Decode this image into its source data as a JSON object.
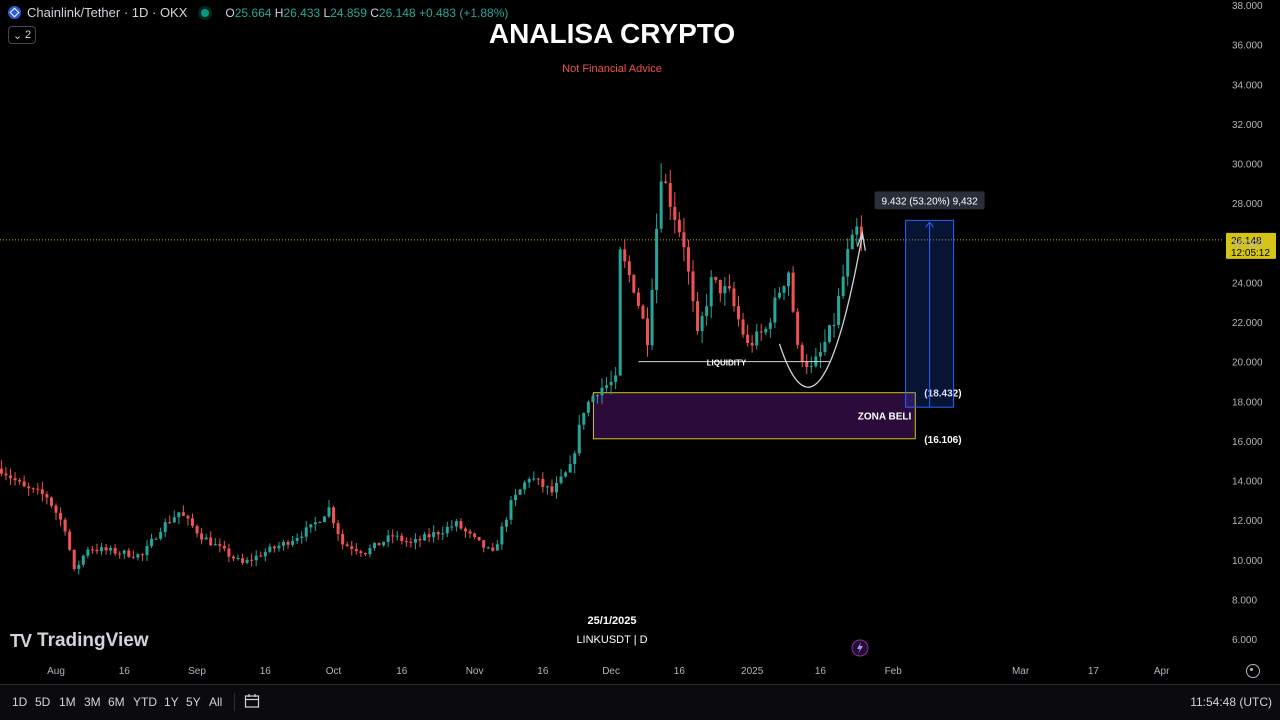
{
  "header": {
    "symbol": "Chainlink/Tether · 1D · OKX",
    "open_label": "O",
    "open": "25.664",
    "high_label": "H",
    "high": "26.433",
    "low_label": "L",
    "low": "24.859",
    "close_label": "C",
    "close": "26.148",
    "change": "+0.483 (+1.88%)",
    "collapse_count": "2"
  },
  "overlay": {
    "title": "ANALISA CRYPTO",
    "subtitle": "Not Financial Advice",
    "liquidity": "LIQUIDITY",
    "zone_label": "ZONA BELI",
    "zone_top": "(18.432)",
    "zone_bottom": "(16.106)",
    "measure": "9.432 (53.20%) 9,432",
    "date_note": "25/1/2025",
    "ticker_note": "LINKUSDT | D"
  },
  "price_tag": {
    "price": "26.148",
    "countdown": "12:05:12"
  },
  "brand": {
    "name": "TradingView"
  },
  "toolbar": {
    "timeframes": [
      "1D",
      "5D",
      "1M",
      "3M",
      "6M",
      "YTD",
      "1Y",
      "5Y",
      "All"
    ],
    "clock": "11:54:48 (UTC)"
  },
  "colors": {
    "up": "#26a69a",
    "down": "#ef5350",
    "zone": "#d4c415",
    "measure": "#2962ff",
    "title": "#ffffff",
    "subtitle": "#ef5350"
  },
  "chart_data": {
    "type": "candlestick",
    "symbol": "LINKUSDT",
    "interval": "1D",
    "y_ticks": [
      "6.000",
      "8.000",
      "10.000",
      "12.000",
      "14.000",
      "16.000",
      "18.000",
      "20.000",
      "22.000",
      "24.000",
      "26.000",
      "28.000",
      "30.000",
      "32.000",
      "34.000",
      "36.000",
      "38.000"
    ],
    "ylim": [
      5,
      38.5
    ],
    "x_ticks": [
      {
        "label": "Aug",
        "date": "2024-08-01"
      },
      {
        "label": "16",
        "date": "2024-08-16"
      },
      {
        "label": "Sep",
        "date": "2024-09-01"
      },
      {
        "label": "16",
        "date": "2024-09-16"
      },
      {
        "label": "Oct",
        "date": "2024-10-01"
      },
      {
        "label": "16",
        "date": "2024-10-16"
      },
      {
        "label": "Nov",
        "date": "2024-11-01"
      },
      {
        "label": "16",
        "date": "2024-11-16"
      },
      {
        "label": "Dec",
        "date": "2024-12-01"
      },
      {
        "label": "16",
        "date": "2024-12-16"
      },
      {
        "label": "2025",
        "date": "2025-01-01"
      },
      {
        "label": "16",
        "date": "2025-01-16"
      },
      {
        "label": "Feb",
        "date": "2025-02-01"
      },
      {
        "label": "Mar",
        "date": "2025-03-01"
      },
      {
        "label": "17",
        "date": "2025-03-17"
      },
      {
        "label": "Apr",
        "date": "2025-04-01"
      }
    ],
    "close_path": [
      [
        "2024-07-20",
        14.6
      ],
      [
        "2024-07-25",
        13.6
      ],
      [
        "2024-07-30",
        13.2
      ],
      [
        "2024-08-03",
        11.6
      ],
      [
        "2024-08-05",
        9.4
      ],
      [
        "2024-08-08",
        10.6
      ],
      [
        "2024-08-14",
        10.4
      ],
      [
        "2024-08-20",
        10.2
      ],
      [
        "2024-08-24",
        11.6
      ],
      [
        "2024-08-28",
        12.4
      ],
      [
        "2024-09-02",
        11.2
      ],
      [
        "2024-09-07",
        10.4
      ],
      [
        "2024-09-11",
        9.8
      ],
      [
        "2024-09-16",
        10.4
      ],
      [
        "2024-09-20",
        10.8
      ],
      [
        "2024-09-26",
        11.6
      ],
      [
        "2024-09-30",
        12.6
      ],
      [
        "2024-10-03",
        10.8
      ],
      [
        "2024-10-08",
        10.4
      ],
      [
        "2024-10-14",
        11.2
      ],
      [
        "2024-10-18",
        10.8
      ],
      [
        "2024-10-24",
        11.4
      ],
      [
        "2024-10-28",
        11.8
      ],
      [
        "2024-11-01",
        11.0
      ],
      [
        "2024-11-05",
        10.3
      ],
      [
        "2024-11-09",
        12.8
      ],
      [
        "2024-11-13",
        14.2
      ],
      [
        "2024-11-18",
        13.4
      ],
      [
        "2024-11-22",
        14.6
      ],
      [
        "2024-11-25",
        17.6
      ],
      [
        "2024-11-28",
        18.6
      ],
      [
        "2024-12-02",
        19.0
      ],
      [
        "2024-12-03",
        25.4
      ],
      [
        "2024-12-06",
        23.8
      ],
      [
        "2024-12-09",
        21.2
      ],
      [
        "2024-12-12",
        29.6
      ],
      [
        "2024-12-15",
        27.4
      ],
      [
        "2024-12-17",
        26.0
      ],
      [
        "2024-12-20",
        21.2
      ],
      [
        "2024-12-23",
        24.0
      ],
      [
        "2024-12-27",
        23.4
      ],
      [
        "2024-12-31",
        20.8
      ],
      [
        "2025-01-04",
        21.6
      ],
      [
        "2025-01-07",
        23.6
      ],
      [
        "2025-01-09",
        24.6
      ],
      [
        "2025-01-11",
        20.6
      ],
      [
        "2025-01-14",
        19.6
      ],
      [
        "2025-01-16",
        20.4
      ],
      [
        "2025-01-19",
        22.0
      ],
      [
        "2025-01-22",
        25.4
      ],
      [
        "2025-01-24",
        26.6
      ],
      [
        "2025-01-25",
        26.15
      ]
    ],
    "annotations": {
      "buy_zone": {
        "label": "ZONA BELI",
        "top": 18.432,
        "bottom": 16.106,
        "from": "2024-11-28",
        "to": "2025-02-03"
      },
      "liquidity_level": {
        "label": "LIQUIDITY",
        "price": 20.0
      },
      "measure": {
        "from": 17.7,
        "to": 27.13,
        "text": "9.432 (53.20%) 9,432",
        "date": "2025-02-09"
      },
      "current_price": 26.148
    }
  }
}
